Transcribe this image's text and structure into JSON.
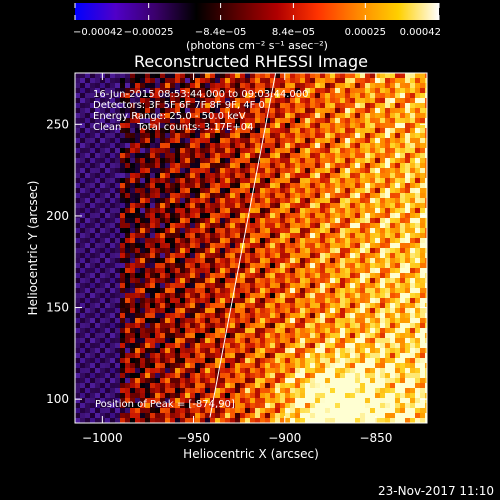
{
  "chart_data": {
    "type": "heatmap",
    "title": "Reconstructed RHESSI Image",
    "xlabel": "Heliocentric X (arcsec)",
    "ylabel": "Heliocentric Y (arcsec)",
    "xlim": [
      -1015,
      -822
    ],
    "ylim": [
      87,
      278
    ],
    "xticks": [
      -1000,
      -950,
      -900,
      -850
    ],
    "xtick_labels": [
      "−1000",
      "−950",
      "−900",
      "−850"
    ],
    "yticks": [
      100,
      150,
      200,
      250
    ],
    "ytick_labels": [
      "100",
      "150",
      "200",
      "250"
    ],
    "colorbar": {
      "range": [
        -0.00042,
        0.00042
      ],
      "ticks": [
        -0.00042,
        -0.00025,
        -8.4e-05,
        8.4e-05,
        0.00025,
        0.00042
      ],
      "tick_labels": [
        "−0.00042",
        "−0.00025",
        "−8.4e−05",
        "8.4e−05",
        "0.00025",
        "0.00042"
      ],
      "units": "(photons cm⁻² s⁻¹ asec⁻²)",
      "colormap": [
        "#0000ff",
        "#5000c8",
        "#3a006a",
        "#000000",
        "#5a0000",
        "#b00000",
        "#ff3300",
        "#ff8800",
        "#ffd000",
        "#ffffff"
      ]
    },
    "annotations": {
      "time_range": "16-Jun-2015 08:53:44.000 to 09:03:44.000",
      "detectors": "Detectors: 3F 5F 6F 7F 8F 9F, 4F 0",
      "energy_range": "Energy Range: 25.0 - 50.0 keV",
      "clean_info": "Clean     Total counts: 3.17E+04",
      "peak_position": "Position of Peak = [-874,90]"
    },
    "peak": {
      "x": -874,
      "y": 90
    },
    "limb_line": [
      [
        -941,
        90
      ],
      [
        -905,
        278
      ]
    ],
    "grid": false
  },
  "footer": {
    "date": "23-Nov-2017 11:10"
  }
}
